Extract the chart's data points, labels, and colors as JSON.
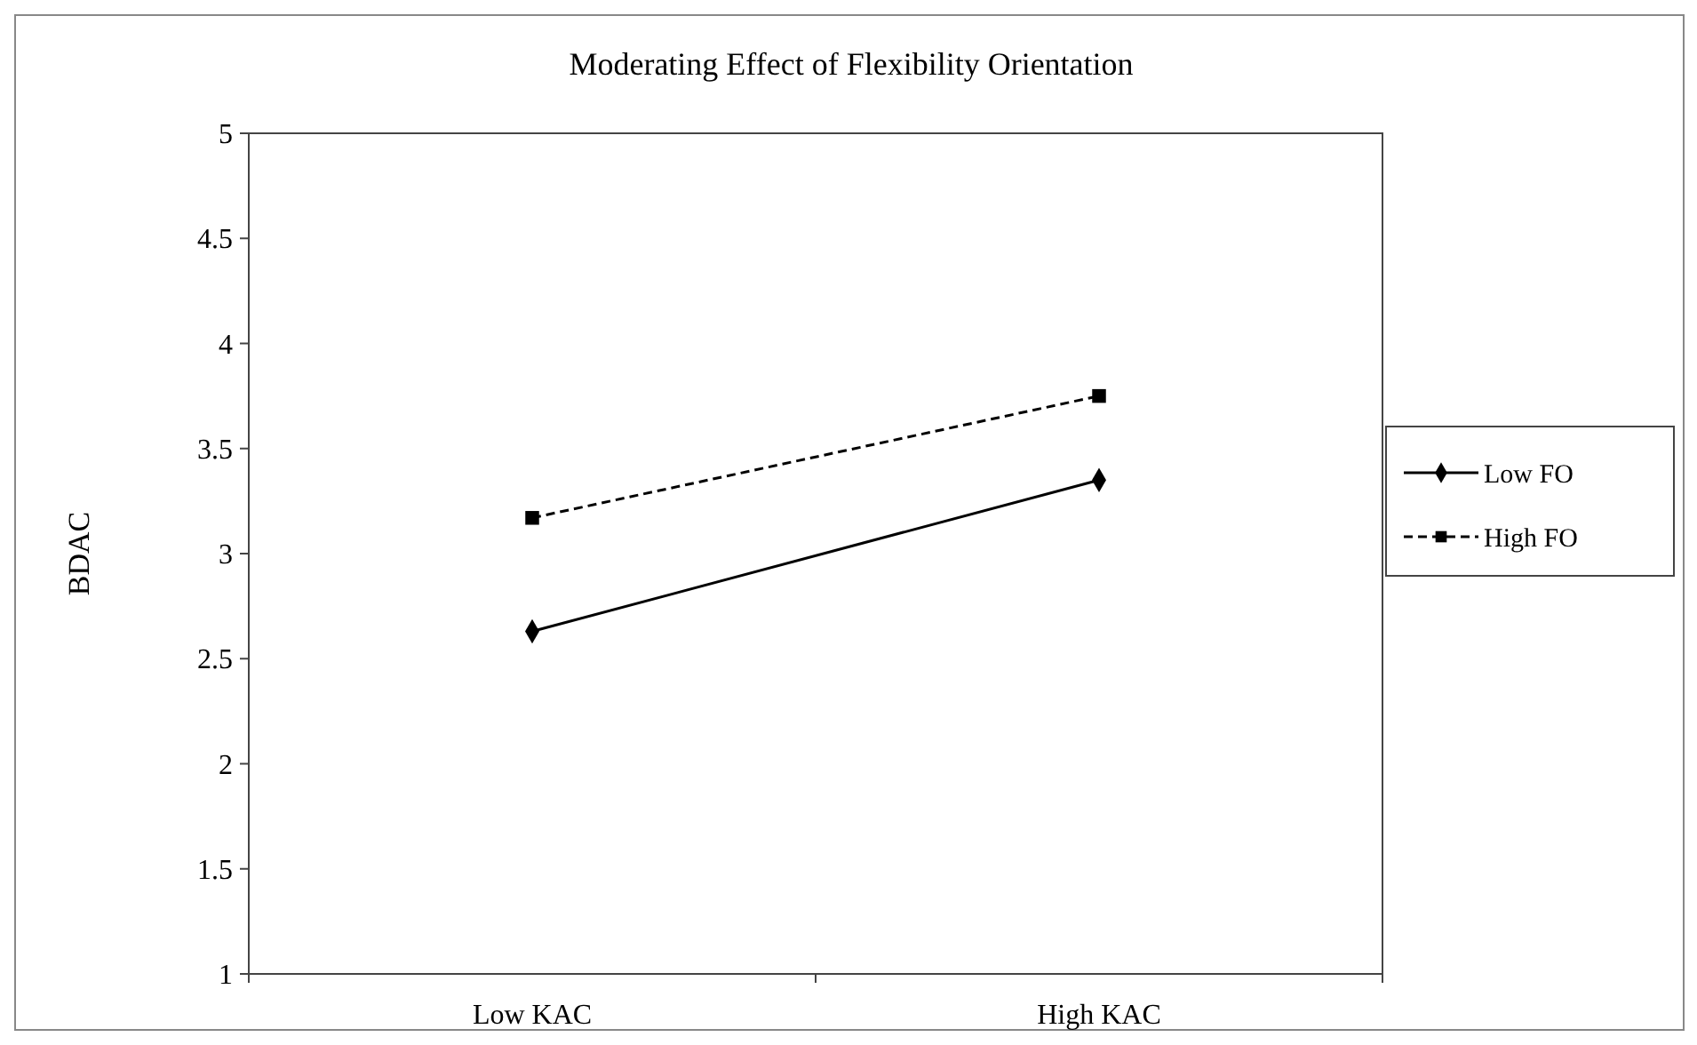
{
  "chart_data": {
    "type": "line",
    "title": "Moderating Effect of Flexibility Orientation",
    "ylabel": "BDAC",
    "categories": [
      "Low KAC",
      "High KAC"
    ],
    "series": [
      {
        "name": "Low FO",
        "color": "#000000",
        "values": [
          2.63,
          3.35
        ],
        "marker": "diamond",
        "line_style": "solid"
      },
      {
        "name": "High FO",
        "color": "#000000",
        "values": [
          3.17,
          3.75
        ],
        "marker": "square",
        "line_style": "dashed"
      }
    ],
    "ylim": [
      1,
      5
    ],
    "yticks": [
      1,
      1.5,
      2,
      2.5,
      3,
      3.5,
      4,
      4.5,
      5
    ],
    "grid": false,
    "legend": "right"
  }
}
